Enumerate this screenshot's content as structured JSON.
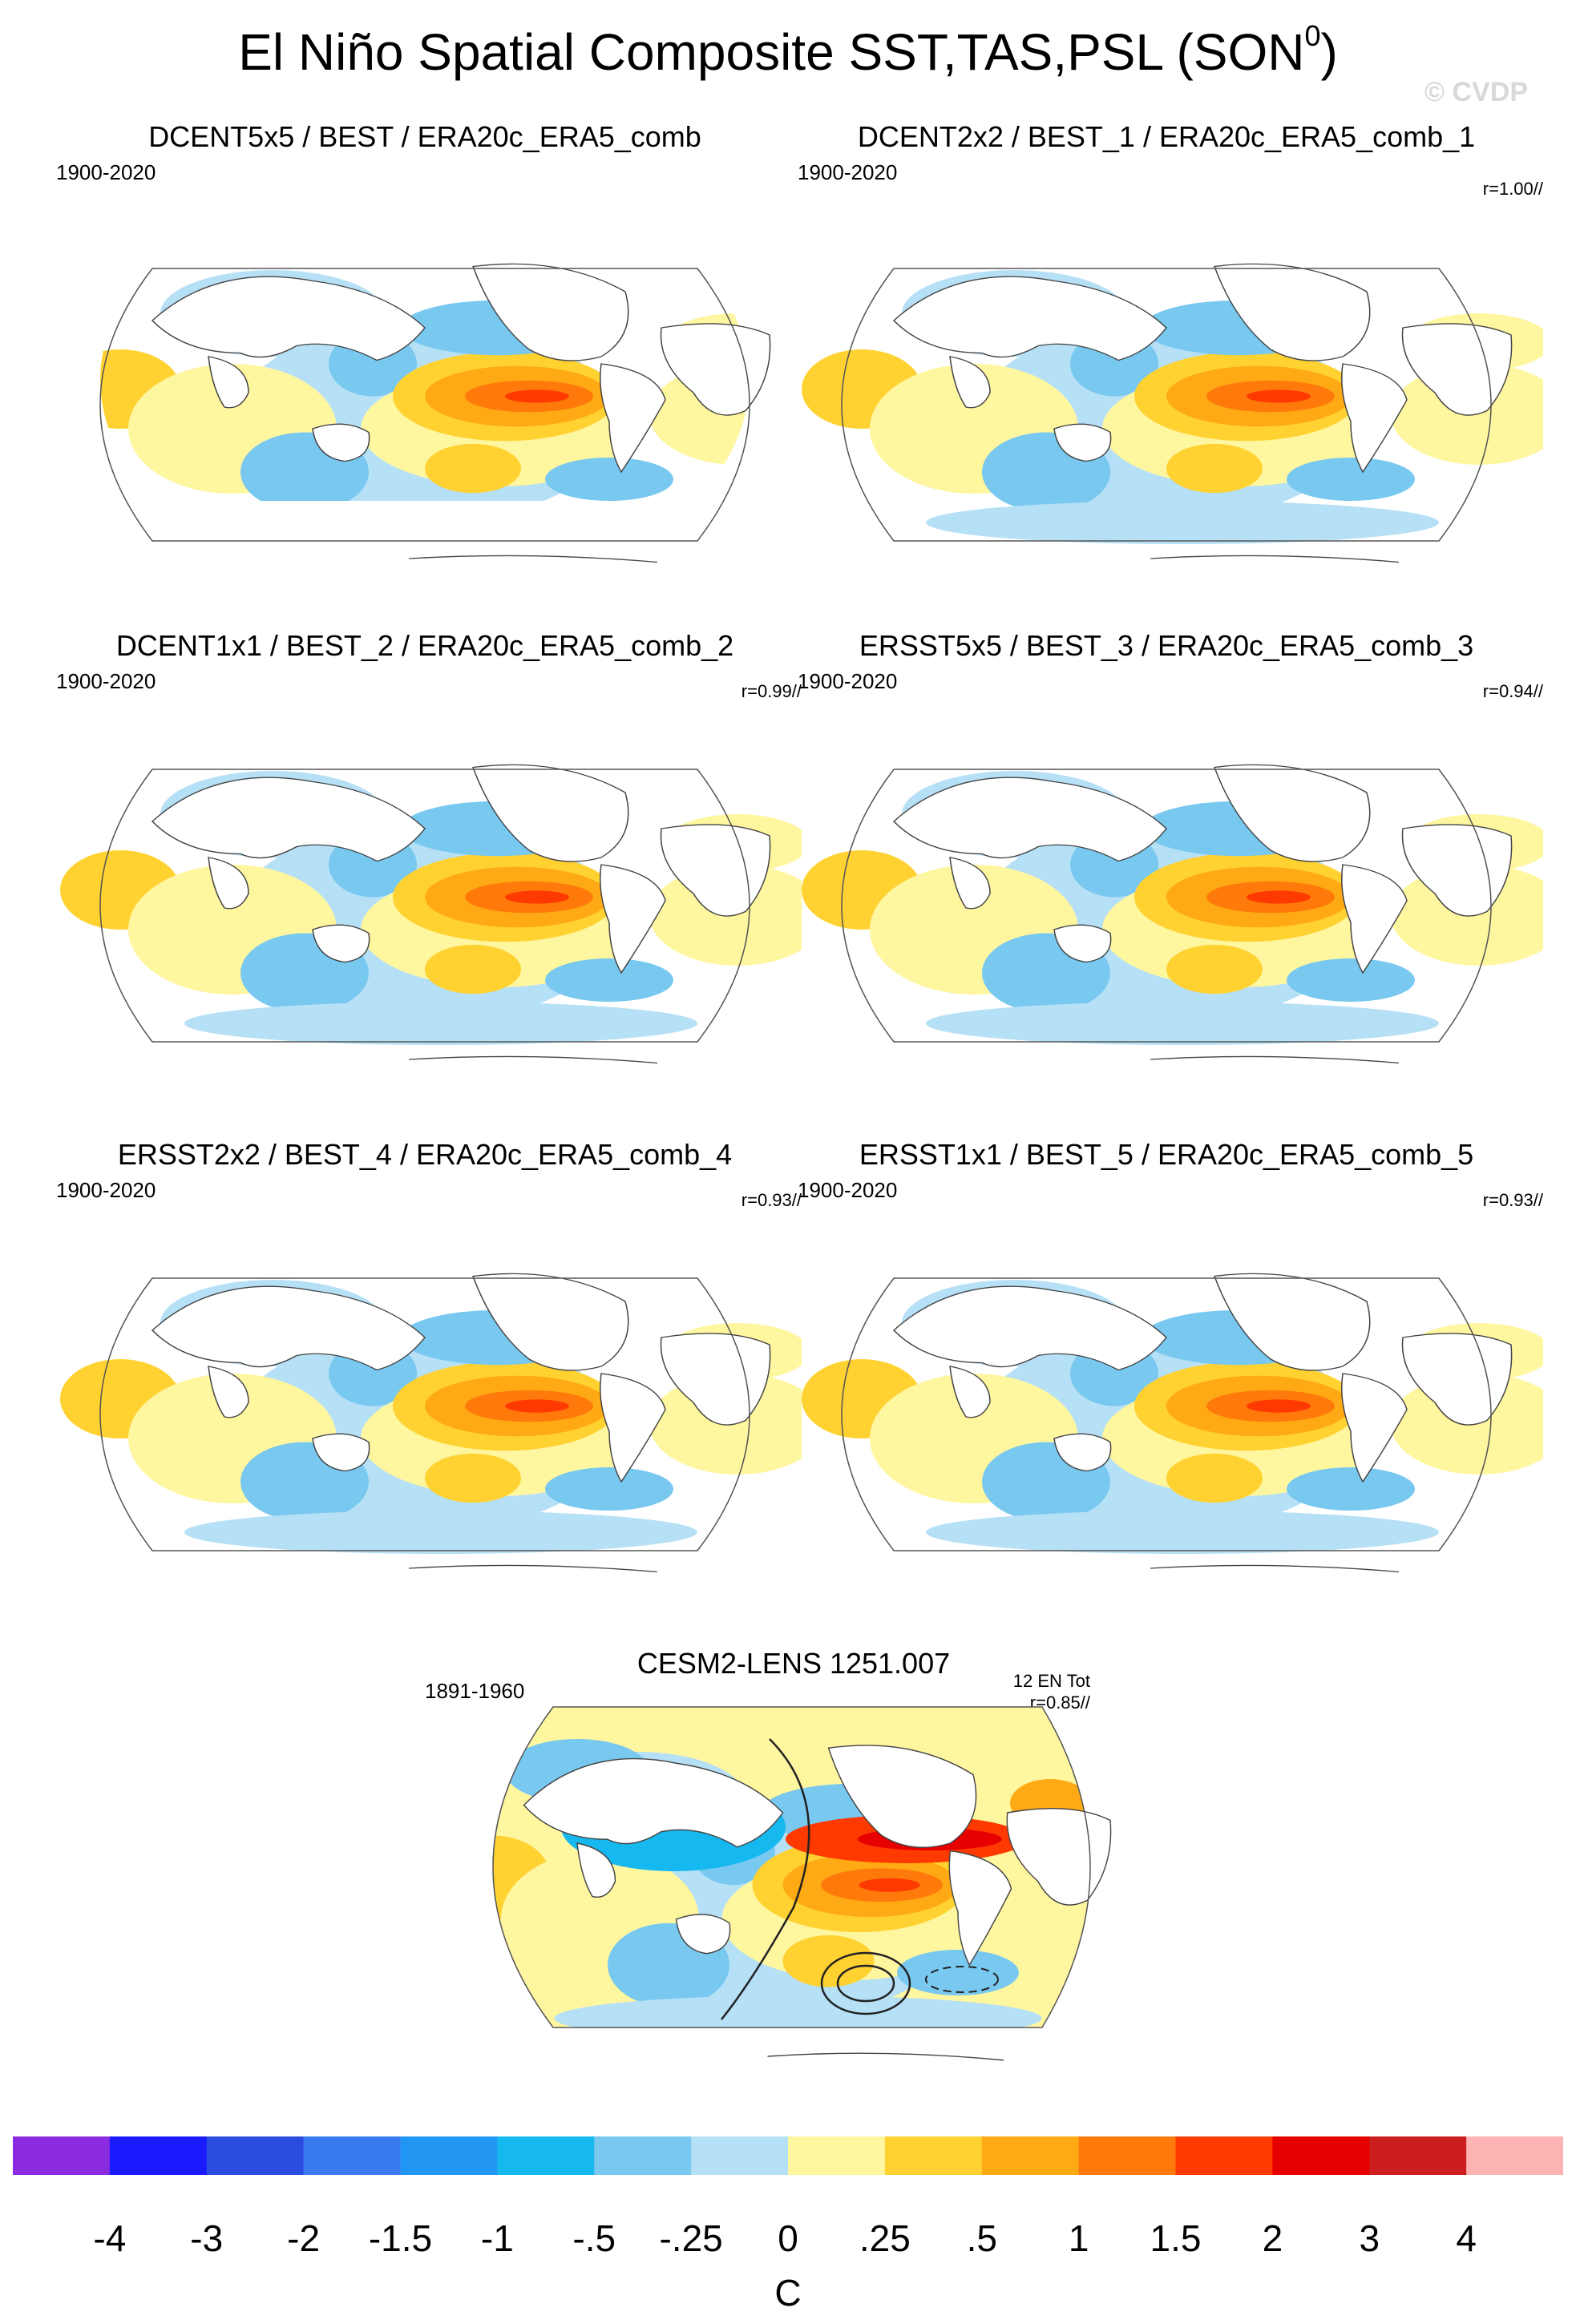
{
  "title_main": "El Niño Spatial Composite SST,TAS,PSL (SON",
  "title_sup": "0",
  "title_close": ")",
  "watermark": "© CVDP",
  "panels": [
    {
      "title": "DCENT5x5 / BEST / ERA20c_ERA5_comb",
      "period": "1900-2020",
      "r": ""
    },
    {
      "title": "DCENT2x2 / BEST_1 / ERA20c_ERA5_comb_1",
      "period": "1900-2020",
      "r": "r=1.00//"
    },
    {
      "title": "DCENT1x1 / BEST_2 / ERA20c_ERA5_comb_2",
      "period": "1900-2020",
      "r": "r=0.99//"
    },
    {
      "title": "ERSST5x5 / BEST_3 / ERA20c_ERA5_comb_3",
      "period": "1900-2020",
      "r": "r=0.94//"
    },
    {
      "title": "ERSST2x2 / BEST_4 / ERA20c_ERA5_comb_4",
      "period": "1900-2020",
      "r": "r=0.93//"
    },
    {
      "title": "ERSST1x1 / BEST_5 / ERA20c_ERA5_comb_5",
      "period": "1900-2020",
      "r": "r=0.93//"
    },
    {
      "title": "CESM2-LENS 1251.007",
      "period": "1891-1960",
      "count": "12 EN Tot",
      "r": "r=0.85//"
    }
  ],
  "chart_data": {
    "type": "heatmap",
    "title": "El Niño Spatial Composite SST,TAS,PSL (SON0)",
    "variables": [
      "SST",
      "TAS",
      "PSL"
    ],
    "units": "C",
    "colorbar": {
      "ticks": [
        "-4",
        "-3",
        "-2",
        "-1.5",
        "-1",
        "-.5",
        "-.25",
        "0",
        ".25",
        ".5",
        "1",
        "1.5",
        "2",
        "3",
        "4"
      ],
      "colors": [
        "#8a2be2",
        "#1a1aff",
        "#2a4de0",
        "#3a7af0",
        "#2196f3",
        "#16b8f0",
        "#78c8f0",
        "#b6e0f6",
        "#fff6a0",
        "#ffd232",
        "#ffaa14",
        "#ff7a0a",
        "#ff3a00",
        "#e60000",
        "#cc1e1e",
        "#ffb4b4"
      ]
    },
    "panels": [
      {
        "title": "DCENT5x5 / BEST / ERA20c_ERA5_comb",
        "period": "1900-2020",
        "pattern_r": null
      },
      {
        "title": "DCENT2x2 / BEST_1 / ERA20c_ERA5_comb_1",
        "period": "1900-2020",
        "pattern_r": 1.0
      },
      {
        "title": "DCENT1x1 / BEST_2 / ERA20c_ERA5_comb_2",
        "period": "1900-2020",
        "pattern_r": 0.99
      },
      {
        "title": "ERSST5x5 / BEST_3 / ERA20c_ERA5_comb_3",
        "period": "1900-2020",
        "pattern_r": 0.94
      },
      {
        "title": "ERSST2x2 / BEST_4 / ERA20c_ERA5_comb_4",
        "period": "1900-2020",
        "pattern_r": 0.93
      },
      {
        "title": "ERSST1x1 / BEST_5 / ERA20c_ERA5_comb_5",
        "period": "1900-2020",
        "pattern_r": 0.93
      },
      {
        "title": "CESM2-LENS 1251.007",
        "period": "1891-1960",
        "events": "12 EN Tot",
        "pattern_r": 0.85
      }
    ]
  }
}
